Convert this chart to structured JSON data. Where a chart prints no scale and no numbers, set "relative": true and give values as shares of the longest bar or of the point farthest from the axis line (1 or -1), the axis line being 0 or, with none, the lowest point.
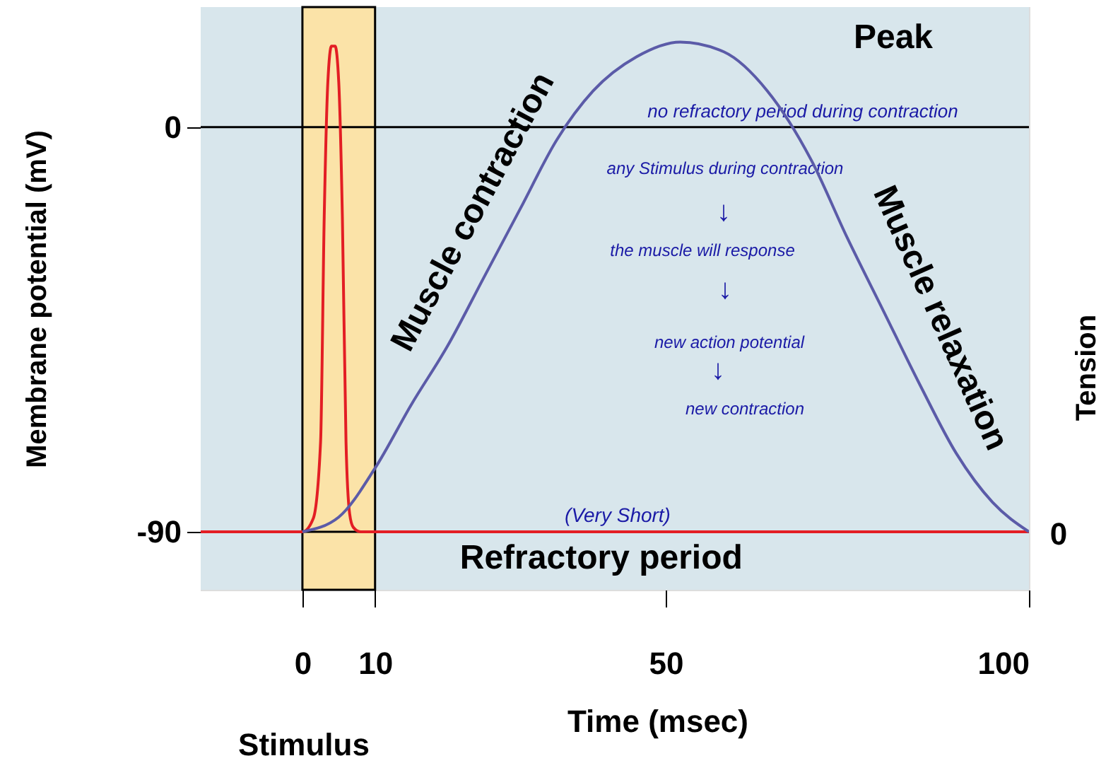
{
  "chart_data": [
    {
      "type": "line",
      "xlabel": "Time (msec)",
      "ylabel": "Membrane potential (mV)",
      "xlim": [
        -14,
        100
      ],
      "xticks": [
        0,
        10,
        50,
        100
      ],
      "ylim": [
        -102.9,
        26.7
      ],
      "yticks": [
        0,
        -90
      ],
      "series": [
        {
          "color": "#e31e24",
          "x": [
            -14,
            0,
            1.5,
            2.5,
            3,
            3.5,
            4,
            4.5,
            5,
            5.5,
            6,
            6.5,
            7,
            8,
            10,
            100
          ],
          "values": [
            -90,
            -90,
            -87,
            -70,
            -20,
            10,
            18,
            18,
            10,
            -20,
            -70,
            -86,
            -89,
            -90,
            -90,
            -90
          ]
        }
      ],
      "bands": [
        {
          "axis": "x",
          "from": 0,
          "to": 10,
          "label": "Refractory period",
          "color": "#fbe3a8"
        }
      ],
      "ref_lines": [
        {
          "axis": "y",
          "value": 0,
          "color": "#000000"
        },
        {
          "axis": "y",
          "value": -90,
          "color": "#000000"
        }
      ],
      "annotations": [
        "Peak",
        "Muscle contraction",
        "Muscle relaxation",
        "no refractory period during contraction",
        "any Stimulus during contraction",
        "↓",
        "the muscle will response",
        "↓",
        "new action potential",
        "↓",
        "new contraction",
        "(Very Short)",
        "Stimulus"
      ]
    },
    {
      "type": "line",
      "relative": true,
      "y2label": "Tension",
      "xlim": [
        -14,
        100
      ],
      "series": [
        {
          "color": "#5b5ba8",
          "x": [
            0,
            5,
            10,
            15,
            20,
            25,
            30,
            35,
            40,
            46,
            52,
            58,
            64,
            70,
            75,
            80,
            85,
            90,
            95,
            100
          ],
          "values": [
            0,
            0.03,
            0.13,
            0.26,
            0.38,
            0.52,
            0.66,
            0.8,
            0.9,
            0.97,
            1.0,
            0.98,
            0.9,
            0.76,
            0.6,
            0.45,
            0.3,
            0.16,
            0.06,
            0
          ]
        }
      ],
      "annotations": [
        "0"
      ]
    }
  ]
}
